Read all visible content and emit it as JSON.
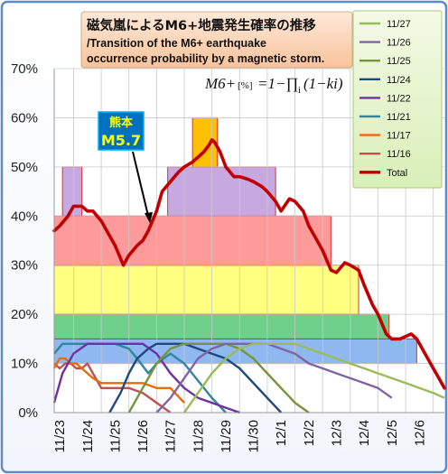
{
  "chart_data": {
    "type": "line",
    "title": "磁気嵐によるM6+地震発生確率の推移",
    "subtitle": "/Transition of the M6+ earthquake occurrence probability by a magnetic storm.",
    "formula": {
      "lhs": "M6+",
      "unit": "[%]",
      "eq": "=1−∏",
      "sub": "i",
      "rhs": "(1−ki)"
    },
    "annotation": {
      "line1": "熊本",
      "line2": "M5.7",
      "x": "11/25.7"
    },
    "yticks": [
      "0%",
      "10%",
      "20%",
      "30%",
      "40%",
      "50%",
      "60%",
      "70%"
    ],
    "ylim": [
      0,
      70
    ],
    "categories": [
      "11/23",
      "11/24",
      "11/25",
      "11/26",
      "11/27",
      "11/28",
      "11/29",
      "11/30",
      "12/1",
      "12/2",
      "12/3",
      "12/4",
      "12/5",
      "12/6"
    ],
    "xlim": [
      22.3,
      36.4
    ],
    "bands": [
      {
        "x0": 22.3,
        "x1": 35.4,
        "y0": 10,
        "y1": 15,
        "fill": "#8fb8f0"
      },
      {
        "x0": 22.3,
        "x1": 34.4,
        "y0": 15,
        "y1": 20,
        "fill": "#6fd08c"
      },
      {
        "x0": 22.3,
        "x1": 33.3,
        "y0": 20,
        "y1": 30,
        "fill": "#ffff80"
      },
      {
        "x0": 22.3,
        "x1": 32.3,
        "y0": 30,
        "y1": 40,
        "fill": "#ff9a9a"
      },
      {
        "x0": 22.6,
        "x1": 23.3,
        "y0": 40,
        "y1": 50,
        "fill": "#c8a8e0"
      },
      {
        "x0": 26.4,
        "x1": 30.3,
        "y0": 40,
        "y1": 50,
        "fill": "#c8a8e0"
      },
      {
        "x0": 27.3,
        "x1": 28.2,
        "y0": 50,
        "y1": 60,
        "fill": "#ffc000"
      }
    ],
    "gridlines": true,
    "legend": {
      "position": "top-right",
      "entries": [
        {
          "name": "11/27",
          "color": "#9bbb59"
        },
        {
          "name": "11/26",
          "color": "#8064a2"
        },
        {
          "name": "11/25",
          "color": "#77933c"
        },
        {
          "name": "11/24",
          "color": "#1f497d"
        },
        {
          "name": "11/22",
          "color": "#7030a0"
        },
        {
          "name": "11/21",
          "color": "#31859c"
        },
        {
          "name": "11/17",
          "color": "#e46c0a"
        },
        {
          "name": "11/16",
          "color": "#c0504d"
        },
        {
          "name": "Total",
          "color": "#c00000"
        }
      ]
    },
    "total": {
      "name": "Total",
      "color": "#c00000",
      "x": [
        22.3,
        22.5,
        22.8,
        23.0,
        23.3,
        23.5,
        23.7,
        24.0,
        24.3,
        24.5,
        24.8,
        25.0,
        25.3,
        25.5,
        25.7,
        26.0,
        26.2,
        26.5,
        26.8,
        27.0,
        27.3,
        27.5,
        27.7,
        27.9,
        28.0,
        28.1,
        28.3,
        28.5,
        28.8,
        29.0,
        29.3,
        29.5,
        29.8,
        30.0,
        30.3,
        30.5,
        30.8,
        31.0,
        31.3,
        31.5,
        31.8,
        32.0,
        32.3,
        32.5,
        32.8,
        33.0,
        33.3,
        33.5,
        33.8,
        34.0,
        34.3,
        34.5,
        34.8,
        35.0,
        35.2,
        35.4,
        35.6,
        35.8,
        36.0,
        36.2,
        36.4
      ],
      "y": [
        37,
        38,
        40,
        42,
        42,
        41,
        41,
        39,
        36,
        34,
        30,
        32,
        34,
        35,
        37,
        41,
        45,
        47,
        49,
        50,
        51,
        52,
        53,
        54.5,
        55.5,
        55,
        53,
        50,
        48,
        48,
        47.5,
        47,
        46,
        45,
        43,
        41,
        43.5,
        43,
        41,
        38,
        35,
        33,
        29,
        28.5,
        30.5,
        30,
        29,
        26,
        22,
        20,
        16,
        15,
        15,
        15.5,
        16,
        15,
        13,
        11,
        9,
        7,
        5
      ]
    },
    "series": [
      {
        "name": "11/16",
        "color": "#c0504d",
        "x": [
          22.3,
          22.5,
          22.7,
          22.9,
          23.1,
          23.3,
          23.5,
          23.7,
          24.0,
          24.5,
          25.0,
          25.5,
          26.0,
          26.5
        ],
        "y": [
          10,
          9,
          10,
          10,
          9,
          9,
          10,
          8,
          5,
          5,
          5,
          4,
          2,
          0
        ]
      },
      {
        "name": "11/17",
        "color": "#e46c0a",
        "x": [
          22.3,
          22.5,
          22.7,
          22.9,
          23.1,
          23.3,
          23.7,
          24.0,
          24.5,
          25.0,
          25.5,
          26.0,
          26.5,
          27.0
        ],
        "y": [
          9,
          11,
          11,
          10,
          10,
          9,
          7,
          6,
          6,
          6,
          6,
          5,
          5,
          2
        ]
      },
      {
        "name": "11/21",
        "color": "#31859c",
        "x": [
          22.3,
          22.6,
          23.0,
          23.5,
          24.0,
          24.5,
          25.0,
          25.3,
          25.7,
          26.0,
          26.5,
          27.0,
          28.0,
          28.5
        ],
        "y": [
          12,
          14,
          14,
          14,
          14,
          14,
          13,
          11,
          8,
          10,
          12,
          10,
          3,
          0
        ]
      },
      {
        "name": "11/22",
        "color": "#7030a0",
        "x": [
          22.3,
          22.6,
          23.0,
          23.5,
          24.0,
          24.5,
          25.0,
          25.5,
          26.0,
          26.5,
          27.0,
          27.5,
          28.0,
          28.5,
          29.0
        ],
        "y": [
          2,
          8,
          12,
          14,
          14,
          14,
          14,
          14,
          12,
          8,
          5,
          3,
          2,
          1,
          0
        ]
      },
      {
        "name": "11/24",
        "color": "#1f497d",
        "x": [
          24.3,
          24.7,
          25.0,
          25.3,
          25.7,
          26.0,
          26.5,
          27.0,
          27.5,
          28.0,
          28.5,
          29.0,
          29.5,
          30.0,
          30.5
        ],
        "y": [
          0,
          4,
          8,
          11,
          13,
          14,
          14,
          14,
          13,
          12,
          11,
          9,
          6,
          3,
          0
        ]
      },
      {
        "name": "11/25",
        "color": "#77933c",
        "x": [
          25.0,
          25.5,
          26.0,
          26.5,
          27.0,
          27.5,
          28.0,
          28.5,
          29.0,
          29.5,
          30.0,
          30.5,
          31.0,
          31.5
        ],
        "y": [
          0,
          5,
          10,
          13,
          14,
          14,
          14,
          14,
          13,
          11,
          8,
          5,
          2,
          0
        ]
      },
      {
        "name": "11/26",
        "color": "#8064a2",
        "x": [
          26.0,
          26.5,
          27.0,
          27.5,
          28.0,
          28.5,
          29.0,
          29.5,
          30.0,
          30.5,
          31.0,
          31.5,
          32.0,
          32.5,
          33.0,
          33.5,
          34.0,
          34.5
        ],
        "y": [
          0,
          3,
          7,
          11,
          13,
          14,
          14,
          14,
          14,
          13,
          12,
          10,
          9,
          8,
          7,
          6,
          5,
          3
        ]
      },
      {
        "name": "11/27",
        "color": "#9bbb59",
        "x": [
          27.0,
          27.5,
          28.0,
          28.5,
          29.0,
          29.5,
          30.0,
          30.5,
          31.0,
          31.5,
          32.0,
          32.5,
          33.0,
          33.5,
          34.0,
          34.5,
          35.0,
          35.5,
          36.0,
          36.4
        ],
        "y": [
          0,
          4,
          8,
          11,
          13,
          14,
          14,
          14,
          14,
          13,
          12,
          11,
          10,
          9,
          8,
          7,
          6,
          5,
          4,
          3
        ]
      }
    ]
  }
}
